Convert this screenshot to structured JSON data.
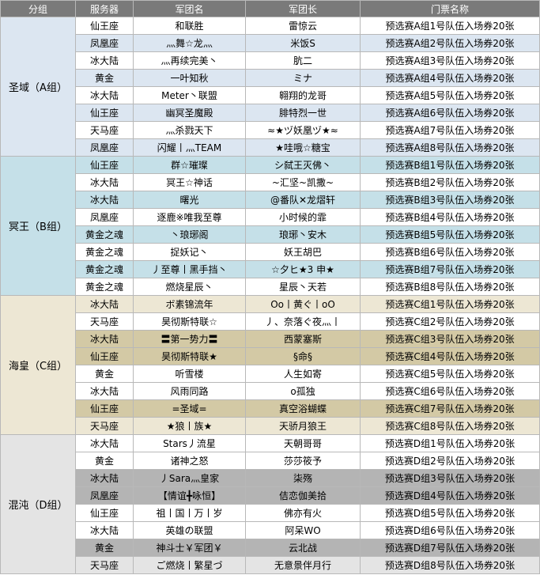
{
  "headers": [
    "分组",
    "服务器",
    "军团名",
    "军团长",
    "门票名称"
  ],
  "groups": [
    {
      "name": "圣域（A组）",
      "group_bg": "#dce6f1",
      "row_bg": [
        "#ffffff",
        "#dce6f1"
      ],
      "rows": [
        {
          "server": "仙王座",
          "legion": "和联胜",
          "leader": "雷惊云",
          "ticket": "预选赛A组1号队伍入场券20张"
        },
        {
          "server": "凤凰座",
          "legion": "灬舞☆龙灬",
          "leader": "米饭S",
          "ticket": "预选赛A组2号队伍入场券20张"
        },
        {
          "server": "冰大陆",
          "legion": "灬再续完美丶",
          "leader": "肮二",
          "ticket": "预选赛A组3号队伍入场券20张"
        },
        {
          "server": "黄金",
          "legion": "一叶知秋",
          "leader": "ミナ",
          "ticket": "预选赛A组4号队伍入场券20张"
        },
        {
          "server": "冰大陆",
          "legion": "Meter丶联盟",
          "leader": "翱翔的龙哥",
          "ticket": "预选赛A组5号队伍入场券20张"
        },
        {
          "server": "仙王座",
          "legion": "幽冥圣魔殿",
          "leader": "腓特烈一世",
          "ticket": "预选赛A组6号队伍入场券20张"
        },
        {
          "server": "天马座",
          "legion": "灬杀戮天下",
          "leader": "≈★ヅ妖凰ヅ★≈",
          "ticket": "预选赛A组7号队伍入场券20张"
        },
        {
          "server": "凤凰座",
          "legion": "闪耀丨灬TEAM",
          "leader": "★哇哦☆糖宝",
          "ticket": "预选赛A组8号队伍入场券20张"
        }
      ]
    },
    {
      "name": "冥王（B组）",
      "group_bg": "#c5e0e8",
      "row_bg": [
        "#c5e0e8",
        "#ffffff"
      ],
      "rows": [
        {
          "server": "仙王座",
          "legion": "群☆璀璨",
          "leader": "シ弑王灭佛丶",
          "ticket": "预选赛B组1号队伍入场券20张"
        },
        {
          "server": "冰大陆",
          "legion": "冥王☆神话",
          "leader": "~汇坚~凯撒~",
          "ticket": "预选赛B组2号队伍入场券20张"
        },
        {
          "server": "冰大陆",
          "legion": "曙光",
          "leader": "@番队✕龙熠轩",
          "ticket": "预选赛B组3号队伍入场券20张"
        },
        {
          "server": "凤凰座",
          "legion": "逐鹿※唯我至尊",
          "leader": "小时候的霏",
          "ticket": "预选赛B组4号队伍入场券20张"
        },
        {
          "server": "黄金之魂",
          "legion": "丶琅琊阁",
          "leader": "琅琊丶安木",
          "ticket": "预选赛B组5号队伍入场券20张"
        },
        {
          "server": "黄金之魂",
          "legion": "捉妖记丶",
          "leader": "妖王胡巴",
          "ticket": "预选赛B组6号队伍入场券20张"
        },
        {
          "server": "黄金之魂",
          "legion": "丿至尊丨黑手挡丶",
          "leader": "☆夕ヒ★3 申★",
          "ticket": "预选赛B组7号队伍入场券20张"
        },
        {
          "server": "黄金之魂",
          "legion": "燃烧星辰丶",
          "leader": "星辰丶天若",
          "ticket": "预选赛B组8号队伍入场券20张"
        }
      ]
    },
    {
      "name": "海皇（C组）",
      "group_bg": "#ede7d4",
      "row_bg": [
        "#ede7d4",
        "#ffffff",
        "#d3c9a5",
        "#d3c9a5",
        "#ffffff",
        "#ffffff",
        "#d3c9a5",
        "#ede7d4"
      ],
      "rows": [
        {
          "server": "冰大陆",
          "legion": "ボ素锦流年",
          "leader": "Oo丨黄ぐ丨oO",
          "ticket": "预选赛C组1号队伍入场券20张"
        },
        {
          "server": "天马座",
          "legion": "昊彻斯特联☆",
          "leader": "丿、奈落ぐ夜灬丨",
          "ticket": "预选赛C组2号队伍入场券20张"
        },
        {
          "server": "冰大陆",
          "legion": "〓第一势力〓",
          "leader": "西蒙塞斯",
          "ticket": "预选赛C组3号队伍入场券20张"
        },
        {
          "server": "仙王座",
          "legion": "昊彻斯特联★",
          "leader": "§命§",
          "ticket": "预选赛C组4号队伍入场券20张"
        },
        {
          "server": "黄金",
          "legion": "听雪楼",
          "leader": "人生如寄",
          "ticket": "预选赛C组5号队伍入场券20张"
        },
        {
          "server": "冰大陆",
          "legion": "风雨同路",
          "leader": "o孤独",
          "ticket": "预选赛C组6号队伍入场券20张"
        },
        {
          "server": "仙王座",
          "legion": "=圣域=",
          "leader": "真空浴蝴蝶",
          "ticket": "预选赛C组7号队伍入场券20张"
        },
        {
          "server": "天马座",
          "legion": "★狼丨族★",
          "leader": "天骄月狼王",
          "ticket": "预选赛C组8号队伍入场券20张"
        }
      ]
    },
    {
      "name": "混沌（D组）",
      "group_bg": "#e4e4e4",
      "row_bg": [
        "#ffffff",
        "#ffffff",
        "#b4b4b4",
        "#b4b4b4",
        "#ffffff",
        "#ffffff",
        "#b4b4b4",
        "#e4e4e4"
      ],
      "rows": [
        {
          "server": "冰大陆",
          "legion": "Stars丿流星",
          "leader": "天朝哥哥",
          "ticket": "预选赛D组1号队伍入场券20张"
        },
        {
          "server": "黄金",
          "legion": "诸神之怒",
          "leader": "莎莎筱予",
          "ticket": "预选赛D组2号队伍入场券20张"
        },
        {
          "server": "冰大陆",
          "legion": "丿Sara灬皇家",
          "leader": "柒殇",
          "ticket": "预选赛D组3号队伍入场券20张"
        },
        {
          "server": "凤凰座",
          "legion": "【情谊╋咏恒】",
          "leader": "佶恋伽美拾",
          "ticket": "预选赛D组4号队伍入场券20张"
        },
        {
          "server": "仙王座",
          "legion": "祖丨国丨万丨岁",
          "leader": "佛亦有火",
          "ticket": "预选赛D组5号队伍入场券20张"
        },
        {
          "server": "冰大陆",
          "legion": "英雄の联盟",
          "leader": "阿呆WO",
          "ticket": "预选赛D组6号队伍入场券20张"
        },
        {
          "server": "黄金",
          "legion": "神斗士￥军团￥",
          "leader": "云北战",
          "ticket": "预选赛D组7号队伍入场券20张"
        },
        {
          "server": "天马座",
          "legion": "ご燃烧丨繁星づ",
          "leader": "无意景伴月行",
          "ticket": "预选赛D组8号队伍入场券20张"
        }
      ]
    }
  ]
}
